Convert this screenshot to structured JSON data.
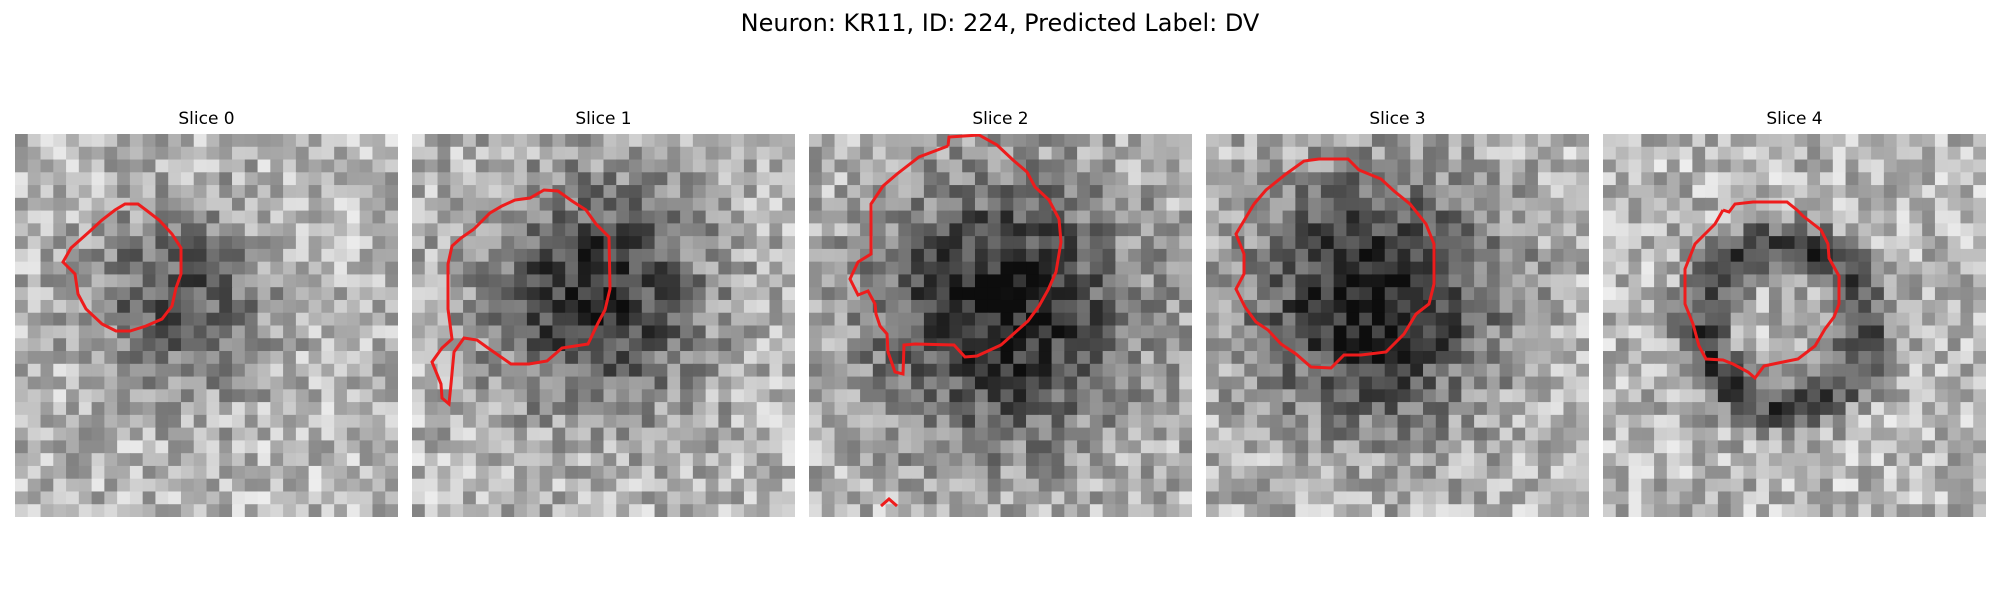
{
  "figure": {
    "title": "Neuron: KR11, ID: 224, Predicted Label: DV",
    "contour_color": "#ee1c1c"
  },
  "slices": [
    {
      "title": "Slice 0"
    },
    {
      "title": "Slice 1"
    },
    {
      "title": "Slice 2"
    },
    {
      "title": "Slice 3"
    },
    {
      "title": "Slice 4"
    }
  ]
}
